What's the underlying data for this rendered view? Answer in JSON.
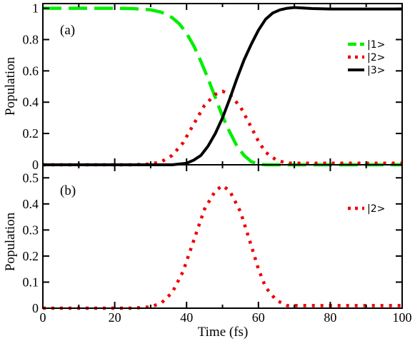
{
  "chart_data": [
    {
      "type": "line",
      "panel_label": "(a)",
      "xlabel": "",
      "ylabel": "Population",
      "xlim": [
        0,
        100
      ],
      "ylim": [
        0,
        1.03
      ],
      "x_ticks": [
        "0",
        "20",
        "40",
        "60",
        "80",
        "100"
      ],
      "y_ticks": [
        "0",
        "0.2",
        "0.4",
        "0.6",
        "0.8",
        "1"
      ],
      "y_tick_values": [
        0,
        0.2,
        0.4,
        0.6,
        0.8,
        1
      ],
      "legend_position": "right",
      "series": [
        {
          "name": "|1>",
          "color": "#00ee00",
          "style": "dashed",
          "x": [
            0,
            10,
            20,
            25,
            30,
            33,
            36,
            38,
            40,
            42,
            44,
            46,
            48,
            50,
            52,
            54,
            56,
            58,
            60,
            62,
            64,
            70,
            80,
            90,
            100
          ],
          "y": [
            1.0,
            1.0,
            1.0,
            0.998,
            0.99,
            0.975,
            0.94,
            0.9,
            0.84,
            0.76,
            0.66,
            0.55,
            0.43,
            0.31,
            0.21,
            0.12,
            0.06,
            0.02,
            0.005,
            0.0,
            0.0,
            0.0,
            0.0,
            0.0,
            0.0
          ]
        },
        {
          "name": "|2>",
          "color": "#ee0000",
          "style": "dotted",
          "x": [
            0,
            10,
            20,
            25,
            30,
            33,
            36,
            39,
            42,
            45,
            48,
            50,
            52,
            55,
            58,
            60,
            62,
            65,
            68,
            70,
            80,
            90,
            100
          ],
          "y": [
            0.0,
            0.0,
            0.0,
            0.0,
            0.005,
            0.02,
            0.06,
            0.14,
            0.26,
            0.38,
            0.45,
            0.47,
            0.45,
            0.37,
            0.24,
            0.15,
            0.08,
            0.03,
            0.01,
            0.01,
            0.01,
            0.01,
            0.01
          ]
        },
        {
          "name": "|3>",
          "color": "#000000",
          "style": "solid",
          "x": [
            0,
            20,
            30,
            36,
            38,
            40,
            42,
            44,
            46,
            48,
            50,
            52,
            54,
            56,
            58,
            60,
            62,
            64,
            66,
            68,
            70,
            75,
            80,
            90,
            100
          ],
          "y": [
            0.0,
            0.0,
            0.0,
            0.0,
            0.005,
            0.01,
            0.03,
            0.06,
            0.12,
            0.2,
            0.3,
            0.42,
            0.55,
            0.67,
            0.77,
            0.86,
            0.93,
            0.97,
            0.99,
            1.0,
            1.005,
            0.998,
            0.995,
            0.995,
            0.995
          ]
        }
      ]
    },
    {
      "type": "line",
      "panel_label": "(b)",
      "xlabel": "Time (fs)",
      "ylabel": "Population",
      "xlim": [
        0,
        100
      ],
      "ylim": [
        0,
        0.55
      ],
      "x_ticks": [
        "0",
        "20",
        "40",
        "60",
        "80",
        "100"
      ],
      "y_ticks": [
        "0",
        "0.1",
        "0.2",
        "0.3",
        "0.4",
        "0.5"
      ],
      "y_tick_values": [
        0,
        0.1,
        0.2,
        0.3,
        0.4,
        0.5
      ],
      "legend_position": "right",
      "series": [
        {
          "name": "|2>",
          "color": "#ee0000",
          "style": "dotted",
          "x": [
            0,
            10,
            20,
            25,
            30,
            33,
            36,
            39,
            42,
            45,
            48,
            50,
            52,
            55,
            58,
            60,
            62,
            65,
            68,
            70,
            80,
            90,
            100
          ],
          "y": [
            0.0,
            0.0,
            0.0,
            0.0,
            0.005,
            0.02,
            0.06,
            0.14,
            0.26,
            0.38,
            0.45,
            0.47,
            0.45,
            0.37,
            0.24,
            0.15,
            0.08,
            0.03,
            0.01,
            0.01,
            0.01,
            0.01,
            0.01
          ]
        }
      ]
    }
  ]
}
